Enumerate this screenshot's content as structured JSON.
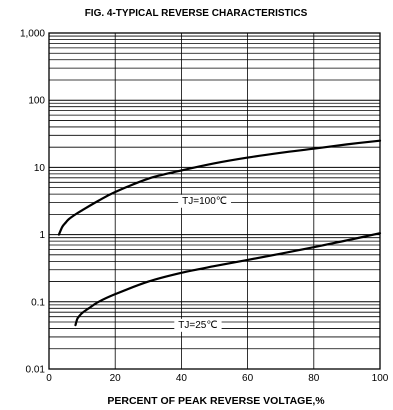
{
  "chart_data": {
    "type": "line",
    "title": "FIG. 4-TYPICAL REVERSE CHARACTERISTICS",
    "xlabel": "PERCENT OF PEAK REVERSE VOLTAGE,%",
    "ylabel": "",
    "x_scale": "linear",
    "y_scale": "log",
    "xlim": [
      0,
      100
    ],
    "ylim": [
      0.01,
      1000
    ],
    "x_ticks": [
      0,
      20,
      40,
      60,
      80,
      100
    ],
    "x_tick_labels": [
      "0",
      "20",
      "40",
      "60",
      "80",
      "100"
    ],
    "y_ticks": [
      0.01,
      0.1,
      1,
      10,
      100,
      1000
    ],
    "y_tick_labels": [
      "0.01",
      "0.1",
      "1",
      "10",
      "100",
      "1,000"
    ],
    "grid": true,
    "series": [
      {
        "name": "TJ=100℃",
        "x": [
          3,
          4,
          5,
          6,
          8,
          10,
          15,
          20,
          30,
          40,
          50,
          60,
          70,
          80,
          90,
          100
        ],
        "y": [
          1.0,
          1.3,
          1.5,
          1.7,
          2.0,
          2.3,
          3.2,
          4.3,
          6.8,
          9.0,
          11.5,
          14,
          16.5,
          19,
          22,
          25
        ]
      },
      {
        "name": "TJ=25℃",
        "x": [
          8,
          8.5,
          9,
          10,
          12,
          15,
          20,
          30,
          40,
          50,
          60,
          70,
          80,
          90,
          100
        ],
        "y": [
          0.045,
          0.055,
          0.06,
          0.068,
          0.08,
          0.1,
          0.13,
          0.2,
          0.27,
          0.34,
          0.42,
          0.52,
          0.65,
          0.82,
          1.05
        ]
      }
    ],
    "annotations": [
      {
        "text": "TJ=100℃",
        "x": 47,
        "y": 3.3
      },
      {
        "text": "TJ=25℃",
        "x": 45,
        "y": 0.047
      }
    ]
  }
}
